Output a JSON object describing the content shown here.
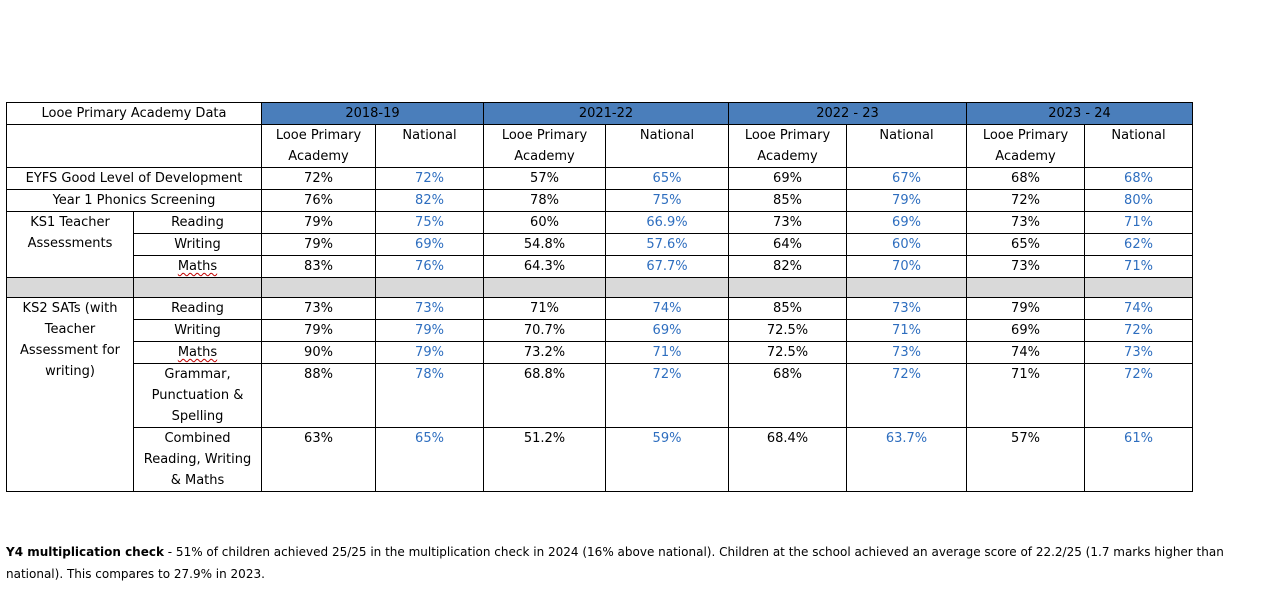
{
  "table": {
    "title": "Looe Primary Academy Data",
    "years": [
      "2018-19",
      "2021-22",
      "2022 - 23",
      "2023 - 24"
    ],
    "subhead_school": "Looe Primary Academy",
    "subhead_national": "National",
    "rows": {
      "eyfs": {
        "label": "EYFS Good Level of Development",
        "values": [
          "72%",
          "72%",
          "57%",
          "65%",
          "69%",
          "67%",
          "68%",
          "68%"
        ]
      },
      "phonics": {
        "label": "Year 1 Phonics Screening",
        "values": [
          "76%",
          "82%",
          "78%",
          "75%",
          "85%",
          "79%",
          "72%",
          "80%"
        ]
      },
      "ks1_group": "KS1 Teacher Assessments",
      "ks1": [
        {
          "label": "Reading",
          "values": [
            "79%",
            "75%",
            "60%",
            "66.9%",
            "73%",
            "69%",
            "73%",
            "71%"
          ]
        },
        {
          "label": "Writing",
          "values": [
            "79%",
            "69%",
            "54.8%",
            "57.6%",
            "64%",
            "60%",
            "65%",
            "62%"
          ]
        },
        {
          "label": "Maths",
          "values": [
            "83%",
            "76%",
            "64.3%",
            "67.7%",
            "82%",
            "70%",
            "73%",
            "71%"
          ]
        }
      ],
      "ks2_group": "KS2 SATs (with Teacher Assessment for writing)",
      "ks2": [
        {
          "label": "Reading",
          "values": [
            "73%",
            "73%",
            "71%",
            "74%",
            "85%",
            "73%",
            "79%",
            "74%"
          ]
        },
        {
          "label": "Writing",
          "values": [
            "79%",
            "79%",
            "70.7%",
            "69%",
            "72.5%",
            "71%",
            "69%",
            "72%"
          ]
        },
        {
          "label": "Maths",
          "values": [
            "90%",
            "79%",
            "73.2%",
            "71%",
            "72.5%",
            "73%",
            "74%",
            "73%"
          ]
        },
        {
          "label": "Grammar, Punctuation & Spelling",
          "values": [
            "88%",
            "78%",
            "68.8%",
            "72%",
            "68%",
            "72%",
            "71%",
            "72%"
          ]
        },
        {
          "label": "Combined Reading, Writing & Maths",
          "values": [
            "63%",
            "65%",
            "51.2%",
            "59%",
            "68.4%",
            "63.7%",
            "57%",
            "61%"
          ]
        }
      ]
    }
  },
  "footnote": {
    "bold": "Y4 multiplication check",
    "text": " - 51% of children achieved 25/25 in the multiplication check in 2024 (16% above national). Children at the school achieved an average score of 22.2/25 (1.7 marks higher than national). This compares to 27.9% in 2023."
  },
  "colors": {
    "header_blue": "#4a7ebb",
    "national_blue": "#2e6ebf",
    "separator_grey": "#d9d9d9"
  }
}
